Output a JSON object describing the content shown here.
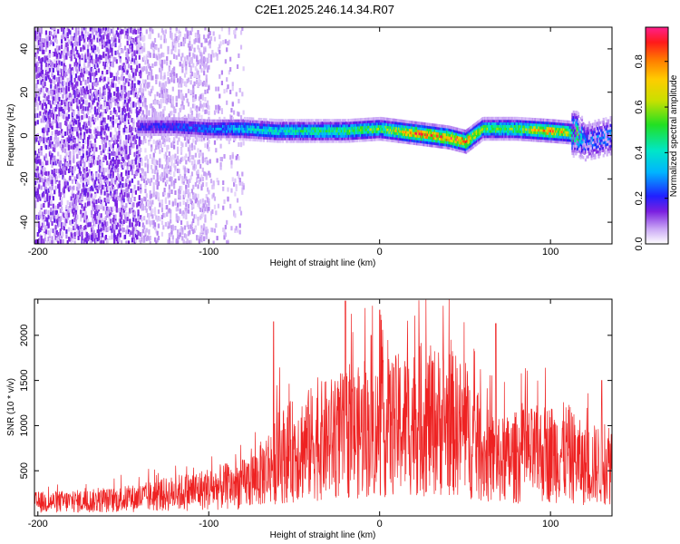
{
  "title": "C2E1.2025.246.14.34.R07",
  "colors": {
    "snr_line": "#ee2222",
    "axis": "#000000",
    "background": "#ffffff"
  },
  "chart_data": [
    {
      "type": "heatmap",
      "name": "spectrogram",
      "xlabel": "Height of straight line (km)",
      "ylabel": "Frequency (Hz)",
      "xlim": [
        -202,
        136
      ],
      "ylim": [
        -50,
        50
      ],
      "x_ticks": [
        -200,
        -100,
        0,
        100
      ],
      "x_tick_labels": [
        "-200",
        "-100",
        "0",
        "100"
      ],
      "y_ticks": [
        40,
        20,
        0,
        -20,
        -40
      ],
      "y_tick_labels": [
        "40",
        "20",
        "0",
        "-20",
        "-40"
      ],
      "colorbar": {
        "label": "Normalized spectral amplitude",
        "range": [
          0,
          0.95
        ],
        "ticks": [
          0.0,
          0.2,
          0.4,
          0.6,
          0.8
        ],
        "tick_labels": [
          "0.0",
          "0.2",
          "0.4",
          "0.6",
          "0.8"
        ]
      },
      "ridge": {
        "x": [
          -140,
          -120,
          -100,
          -80,
          -60,
          -40,
          -20,
          0,
          20,
          40,
          50,
          60,
          80,
          100,
          115,
          120,
          136
        ],
        "freq": [
          4,
          4,
          3,
          3,
          2,
          2,
          2,
          3,
          1,
          -1,
          -3,
          3,
          3,
          2,
          1,
          -3,
          0
        ],
        "peak_amplitude": [
          0.2,
          0.25,
          0.3,
          0.4,
          0.45,
          0.5,
          0.55,
          0.6,
          0.85,
          0.9,
          0.9,
          0.6,
          0.6,
          0.85,
          0.6,
          0.3,
          0.3
        ]
      }
    },
    {
      "type": "line",
      "name": "snr",
      "xlabel": "Height of straight line (km)",
      "ylabel": "SNR (10 * v/v)",
      "xlim": [
        -202,
        136
      ],
      "ylim": [
        0,
        2400
      ],
      "x_ticks": [
        -200,
        -100,
        0,
        100
      ],
      "x_tick_labels": [
        "-200",
        "-100",
        "0",
        "100"
      ],
      "y_ticks": [
        500,
        1000,
        1500,
        2000
      ],
      "y_tick_labels": [
        "500",
        "1000",
        "1500",
        "2000"
      ],
      "series": [
        {
          "name": "SNR",
          "x": [
            -200,
            -180,
            -160,
            -140,
            -120,
            -100,
            -80,
            -70,
            -60,
            -40,
            -20,
            0,
            20,
            40,
            50,
            60,
            70,
            80,
            100,
            110,
            120,
            136
          ],
          "y": [
            150,
            160,
            170,
            200,
            250,
            300,
            350,
            450,
            650,
            800,
            900,
            950,
            1050,
            1050,
            950,
            700,
            600,
            650,
            700,
            700,
            550,
            600
          ],
          "peaks": {
            "x": [
              -62,
              -20,
              -5,
              0,
              68,
              130
            ],
            "y": [
              2150,
              2380,
              2000,
              2280,
              2130,
              1500
            ]
          }
        }
      ]
    }
  ]
}
